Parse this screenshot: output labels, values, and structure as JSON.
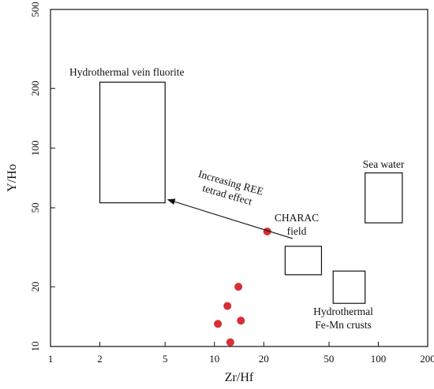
{
  "chart_data": {
    "type": "scatter",
    "xlabel": "Zr/Hf",
    "ylabel": "Y/Ho",
    "xscale": "log",
    "yscale": "log",
    "xlim": [
      1,
      200
    ],
    "ylim": [
      10,
      500
    ],
    "xticks": [
      1,
      2,
      5,
      10,
      20,
      50,
      100,
      200
    ],
    "yticks": [
      10,
      20,
      50,
      100,
      200,
      500
    ],
    "grid": false,
    "point_color": "#d62f35",
    "points": [
      {
        "x": 21,
        "y": 38
      },
      {
        "x": 14,
        "y": 20
      },
      {
        "x": 12,
        "y": 16
      },
      {
        "x": 14.5,
        "y": 13.5
      },
      {
        "x": 10.5,
        "y": 13
      },
      {
        "x": 12.5,
        "y": 10.5
      }
    ],
    "regions": [
      {
        "label": "Hydrothermal vein fluorite",
        "x": [
          2,
          5
        ],
        "y": [
          53,
          215
        ]
      },
      {
        "label": "CHARAC field",
        "x": [
          27,
          45
        ],
        "y": [
          23,
          32
        ]
      },
      {
        "label": "Hydrothermal Fe-Mn crusts",
        "x": [
          53,
          83
        ],
        "y": [
          16.5,
          24
        ]
      },
      {
        "label": "Sea water",
        "x": [
          83,
          140
        ],
        "y": [
          42,
          75
        ]
      }
    ],
    "annotations": [
      {
        "text": "Increasing REE tetrad effect",
        "arrow_from": [
          30,
          35
        ],
        "arrow_to": [
          5.2,
          55
        ]
      }
    ]
  },
  "labels": {
    "xlabel": "Zr/Hf",
    "ylabel": "Y/Ho",
    "vein_fluorite": "Hydrothermal vein fluorite",
    "charac_line1": "CHARAC",
    "charac_line2": "field",
    "femn_line1": "Hydrothermal",
    "femn_line2": "Fe-Mn crusts",
    "sea_water": "Sea water",
    "arrow_line1": "Increasing REE",
    "arrow_line2": "tetrad effect"
  }
}
